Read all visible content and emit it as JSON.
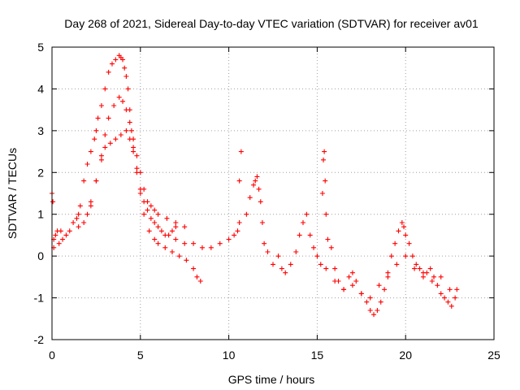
{
  "chart_data": {
    "type": "scatter",
    "title": "Day 268 of 2021, Sidereal Day-to-day VTEC variation (SDTVAR) for receiver av01",
    "xlabel": "GPS time / hours",
    "ylabel": "SDTVAR / TECUs",
    "xlim": [
      0,
      25
    ],
    "ylim": [
      -2,
      5
    ],
    "xticks": [
      0,
      5,
      10,
      15,
      20,
      25
    ],
    "xtick_labels": [
      "0",
      "5",
      "10",
      "15",
      "20",
      "25"
    ],
    "yticks": [
      -2,
      -1,
      0,
      1,
      2,
      3,
      4,
      5
    ],
    "ytick_labels": [
      "-2",
      "-1",
      "0",
      "1",
      "2",
      "3",
      "4",
      "5"
    ],
    "grid": true,
    "marker": "+",
    "series": [
      {
        "name": "SDTVAR",
        "color": "#ff0000",
        "x": [
          0.0,
          0.05,
          0.1,
          0.1,
          0.2,
          0.3,
          0.4,
          0.5,
          0.6,
          0.8,
          1.0,
          1.2,
          1.4,
          1.5,
          1.6,
          1.8,
          2.0,
          2.2,
          2.4,
          2.5,
          2.6,
          2.8,
          3.0,
          3.2,
          3.4,
          3.6,
          3.8,
          3.9,
          4.0,
          4.1,
          4.2,
          4.3,
          4.4,
          4.5,
          4.6,
          4.8,
          5.0,
          5.2,
          5.4,
          5.6,
          5.8,
          6.0,
          6.2,
          6.4,
          6.6,
          6.8,
          7.0,
          2.2,
          2.5,
          2.8,
          3.0,
          3.2,
          3.5,
          3.8,
          4.0,
          4.2,
          4.4,
          4.6,
          4.8,
          5.0,
          5.2,
          5.4,
          5.6,
          5.8,
          6.0,
          6.5,
          7.0,
          7.5,
          1.5,
          1.8,
          2.0,
          2.2,
          2.5,
          2.8,
          3.0,
          3.3,
          3.6,
          3.9,
          4.2,
          4.4,
          4.6,
          4.8,
          5.0,
          5.2,
          5.5,
          5.8,
          6.0,
          6.4,
          6.8,
          7.2,
          7.6,
          8.0,
          8.2,
          8.4,
          7.0,
          7.5,
          8.0,
          8.5,
          9.0,
          9.5,
          10.0,
          10.3,
          10.5,
          10.6,
          10.6,
          10.7,
          11.0,
          11.2,
          11.4,
          11.5,
          11.6,
          11.7,
          11.8,
          11.9,
          12.0,
          12.2,
          12.5,
          12.8,
          13.0,
          13.2,
          13.5,
          13.8,
          14.0,
          14.2,
          14.4,
          14.6,
          14.8,
          15.0,
          15.2,
          15.3,
          15.35,
          15.4,
          15.45,
          15.5,
          15.6,
          15.8,
          16.0,
          16.2,
          16.5,
          16.8,
          17.0,
          17.2,
          17.5,
          17.8,
          18.0,
          18.2,
          18.4,
          18.6,
          18.8,
          19.0,
          19.2,
          19.4,
          19.6,
          19.8,
          19.9,
          20.0,
          20.2,
          20.4,
          20.6,
          20.8,
          21.0,
          21.2,
          21.4,
          21.6,
          21.8,
          22.0,
          22.2,
          22.4,
          22.6,
          22.8,
          22.9,
          15.5,
          16.0,
          16.5,
          17.0,
          17.5,
          18.0,
          18.5,
          19.0,
          19.5,
          20.0,
          20.5,
          21.0,
          21.5,
          22.0,
          22.5
        ],
        "y": [
          1.5,
          1.3,
          0.4,
          0.2,
          0.5,
          0.6,
          0.3,
          0.6,
          0.4,
          0.5,
          0.6,
          0.8,
          0.9,
          1.0,
          1.2,
          1.8,
          2.2,
          2.5,
          2.8,
          3.0,
          3.3,
          3.6,
          4.0,
          4.4,
          4.6,
          4.7,
          4.8,
          4.75,
          4.7,
          4.5,
          4.3,
          4.0,
          3.5,
          3.0,
          2.6,
          2.1,
          1.6,
          1.3,
          1.1,
          0.9,
          0.8,
          0.7,
          0.6,
          0.5,
          0.5,
          0.6,
          0.7,
          1.2,
          1.8,
          2.4,
          2.9,
          3.3,
          3.6,
          3.8,
          3.7,
          3.5,
          3.2,
          2.8,
          2.4,
          2.0,
          1.6,
          1.3,
          1.2,
          1.1,
          1.0,
          0.9,
          0.8,
          0.7,
          0.7,
          0.8,
          1.0,
          1.3,
          1.8,
          2.3,
          2.6,
          2.7,
          2.8,
          2.9,
          3.0,
          2.8,
          2.5,
          2.0,
          1.5,
          1.0,
          0.6,
          0.4,
          0.3,
          0.2,
          0.1,
          0.0,
          -0.1,
          -0.3,
          -0.5,
          -0.6,
          0.4,
          0.3,
          0.3,
          0.2,
          0.2,
          0.3,
          0.4,
          0.5,
          0.6,
          0.8,
          1.8,
          2.5,
          1.0,
          1.4,
          1.7,
          1.8,
          1.9,
          1.6,
          1.3,
          0.8,
          0.3,
          0.1,
          -0.2,
          0.0,
          -0.3,
          -0.4,
          -0.2,
          0.1,
          0.5,
          0.8,
          1.0,
          0.5,
          0.2,
          0.0,
          -0.2,
          1.5,
          2.3,
          2.5,
          1.8,
          1.0,
          0.4,
          0.2,
          -0.3,
          -0.6,
          -0.8,
          -0.5,
          -0.4,
          -0.6,
          -0.9,
          -1.1,
          -1.3,
          -1.4,
          -1.3,
          -1.1,
          -0.8,
          -0.4,
          0.0,
          0.3,
          0.6,
          0.8,
          0.7,
          0.5,
          0.3,
          0.0,
          -0.2,
          -0.3,
          -0.5,
          -0.4,
          -0.3,
          -0.5,
          -0.7,
          -0.9,
          -1.0,
          -1.1,
          -1.2,
          -1.0,
          -0.8,
          -0.3,
          -0.6,
          -0.8,
          -0.7,
          -0.9,
          -1.0,
          -0.7,
          -0.5,
          -0.2,
          0.0,
          -0.3,
          -0.4,
          -0.6,
          -0.5,
          -0.8
        ]
      }
    ]
  }
}
